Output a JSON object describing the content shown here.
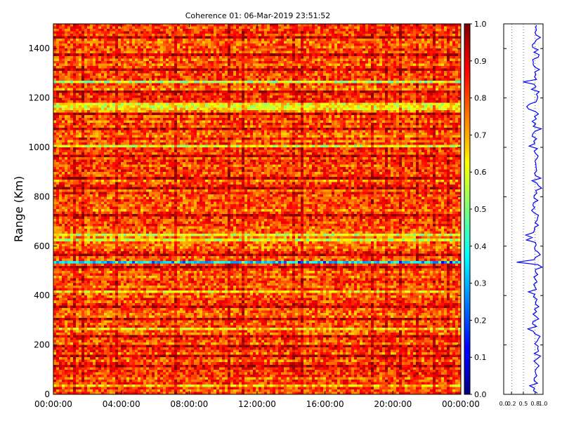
{
  "chart_data": [
    {
      "type": "heatmap",
      "title": "Coherence 01: 06-Mar-2019 23:51:52",
      "xlabel": "",
      "ylabel": "Range (Km)",
      "ylim": [
        0,
        1500
      ],
      "xlim": [
        "00:00:00",
        "24:00:00"
      ],
      "x_ticks": [
        "00:00:00",
        "04:00:00",
        "08:00:00",
        "12:00:00",
        "16:00:00",
        "20:00:00",
        "00:00:00"
      ],
      "y_ticks": [
        "0",
        "200",
        "400",
        "600",
        "800",
        "1000",
        "1200",
        "1400"
      ],
      "colorscale": "jet",
      "zlim": [
        0,
        1
      ],
      "colorbar_ticks": [
        "0.0",
        "0.1",
        "0.2",
        "0.3",
        "0.4",
        "0.5",
        "0.6",
        "0.7",
        "0.8",
        "0.9",
        "1.0"
      ],
      "low_coherence_bands_km": [
        {
          "range": 1262,
          "mean": 0.55
        },
        {
          "range": 1172,
          "mean": 0.62
        },
        {
          "range": 1160,
          "mean": 0.62
        },
        {
          "range": 1148,
          "mean": 0.64
        },
        {
          "range": 1000,
          "mean": 0.6
        },
        {
          "range": 635,
          "mean": 0.58
        },
        {
          "range": 620,
          "mean": 0.6
        },
        {
          "range": 530,
          "mean": 0.35
        },
        {
          "range": 410,
          "mean": 0.65
        },
        {
          "range": 255,
          "mean": 0.65
        },
        {
          "range": 30,
          "mean": 0.68
        }
      ],
      "high_coherence_bands_km": [
        1440,
        1370,
        1310,
        1220,
        1130,
        1070,
        960,
        870,
        830,
        720,
        560,
        510,
        350,
        300,
        230,
        190,
        150,
        110
      ]
    },
    {
      "type": "line",
      "title": "",
      "xlabel": "",
      "ylabel": "",
      "xlim": [
        0,
        1
      ],
      "ylim": [
        0,
        1500
      ],
      "x_ticks": [
        "0.0",
        "0.2",
        "0.5",
        "0.8",
        "1.0"
      ],
      "series_color": "#0000ff",
      "description_source": "mean coherence profile vs range"
    }
  ]
}
